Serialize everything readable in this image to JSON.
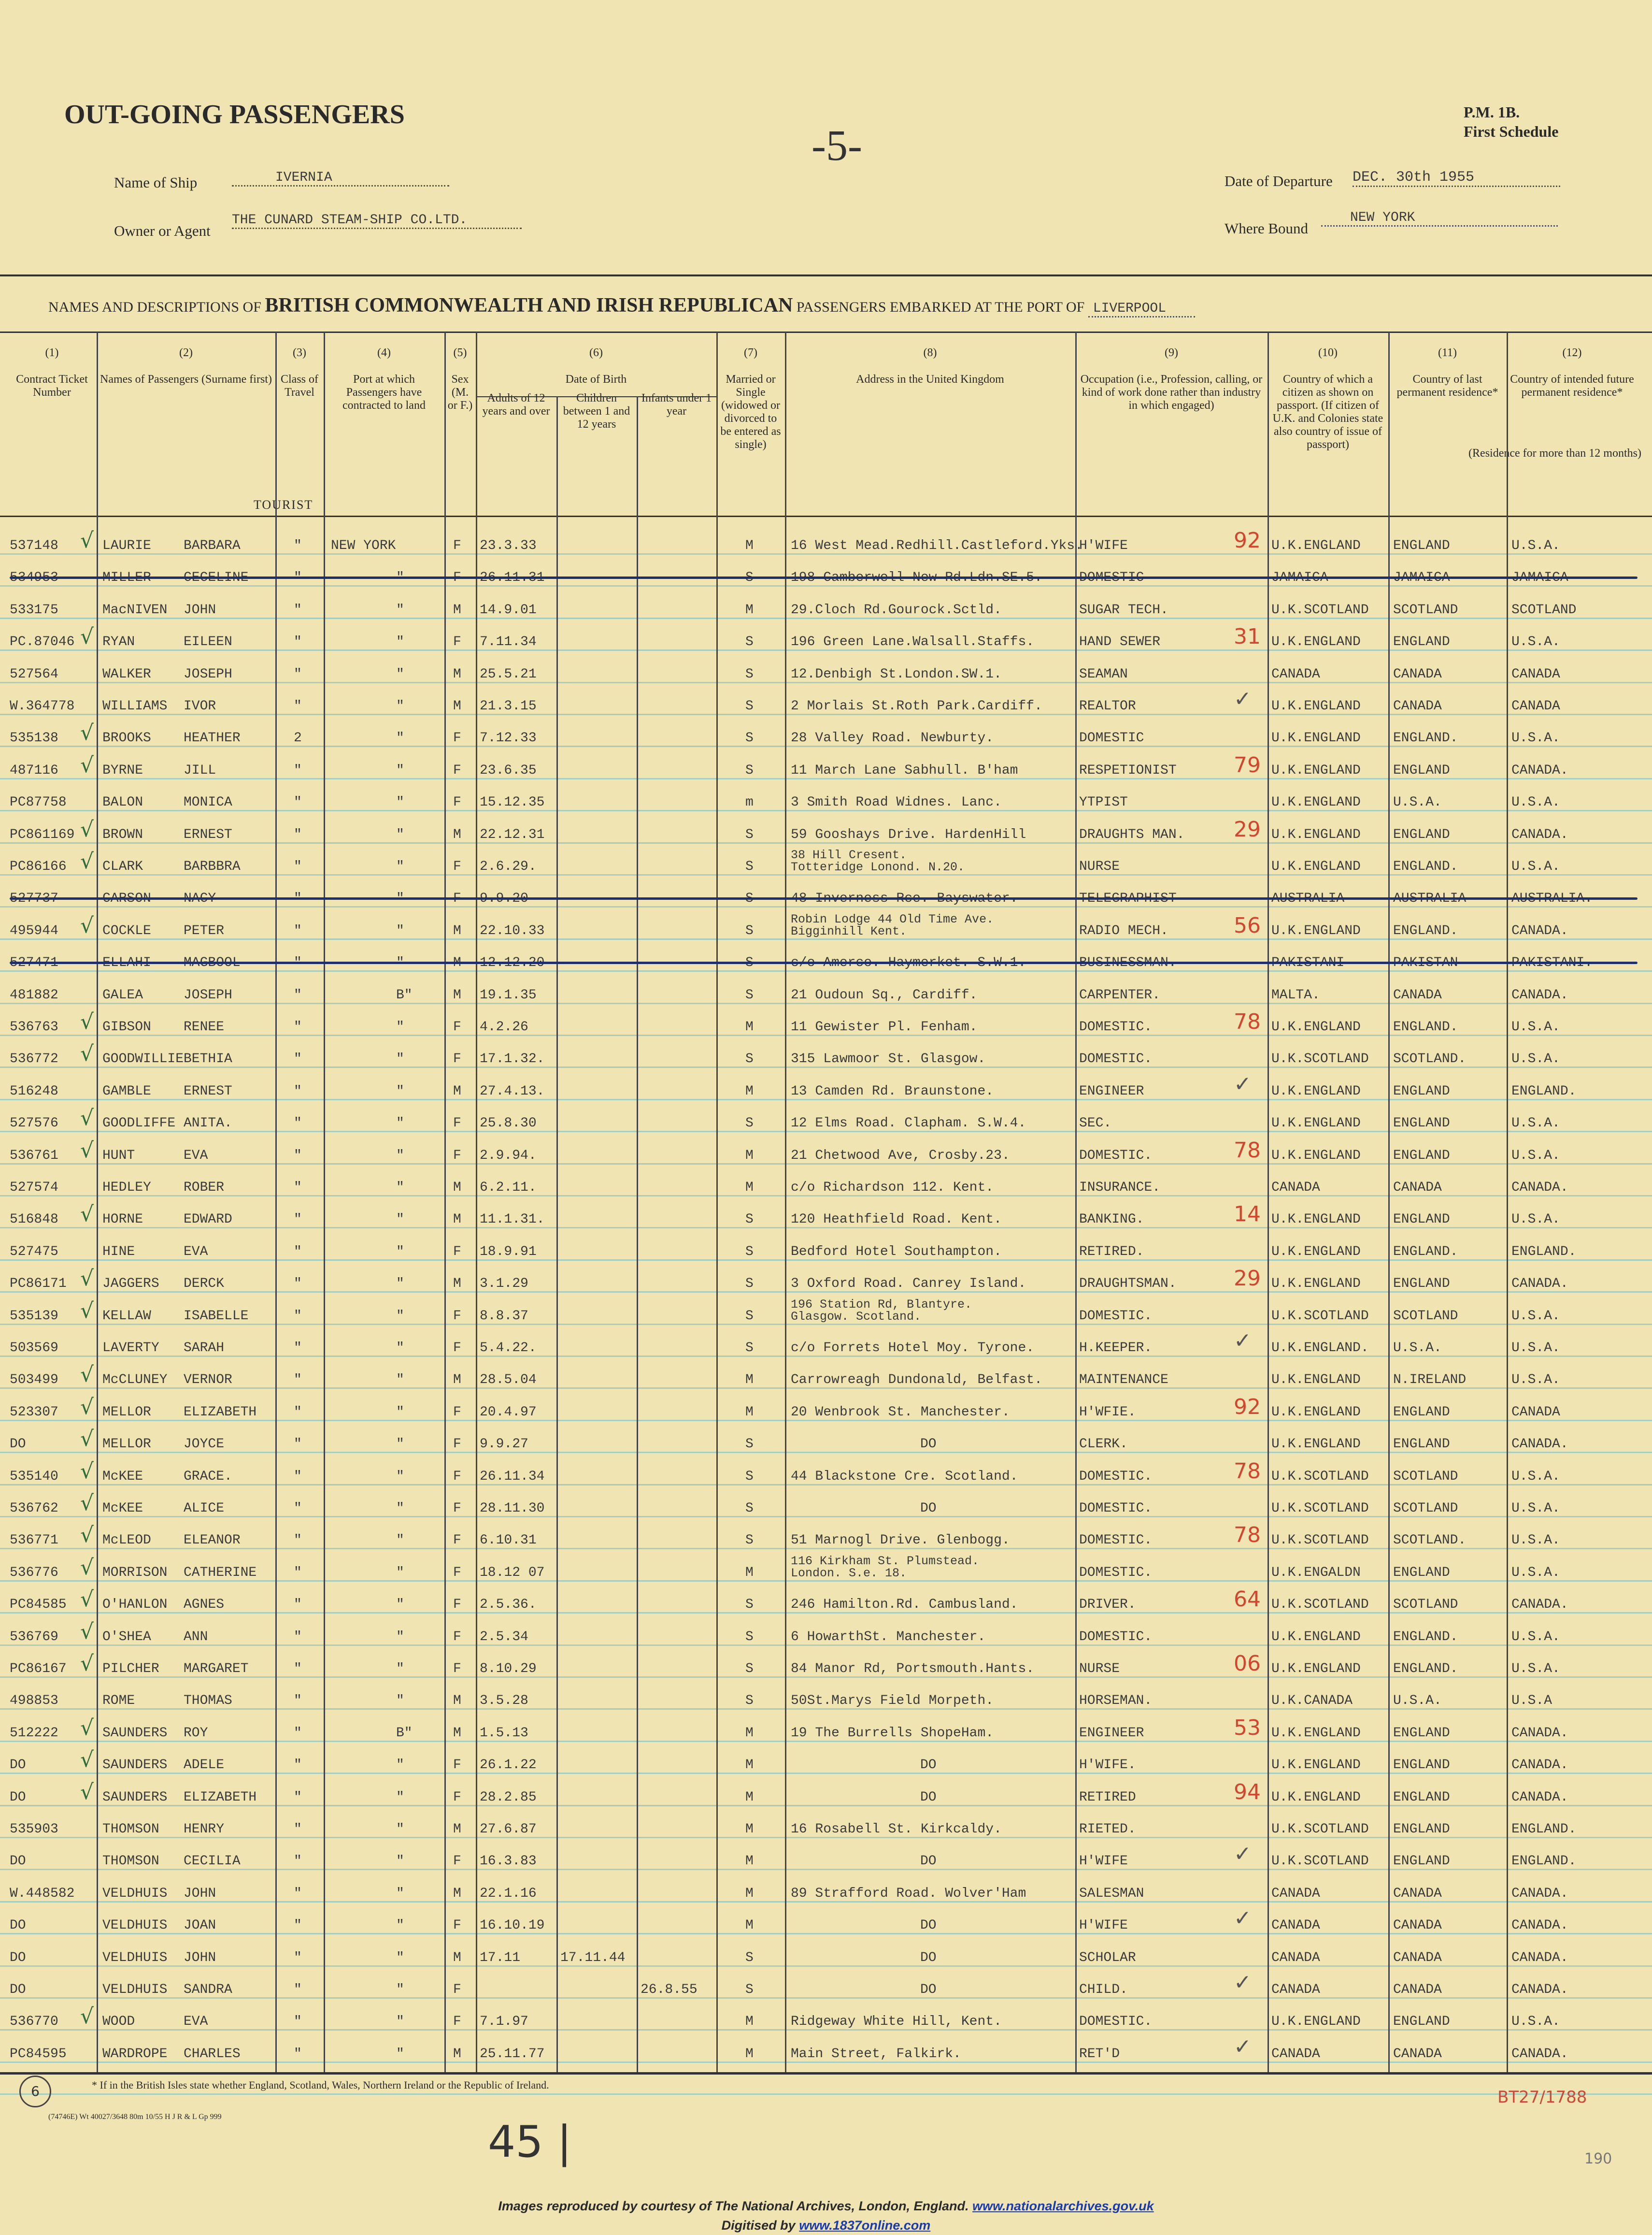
{
  "header": {
    "title": "OUT-GOING PASSENGERS",
    "page_mark": "-5-",
    "form_code": "P.M. 1B.",
    "schedule": "First Schedule",
    "ship_label": "Name of Ship",
    "ship_value": "IVERNIA",
    "owner_label": "Owner or Agent",
    "owner_value": "THE CUNARD STEAM-SHIP CO.LTD.",
    "departure_label": "Date of Departure",
    "departure_value": "DEC. 30th 1955",
    "bound_label": "Where Bound",
    "bound_value": "NEW YORK",
    "heading_pre": "NAMES AND DESCRIPTIONS OF",
    "heading_main": "BRITISH COMMONWEALTH AND IRISH REPUBLICAN",
    "heading_post": "PASSENGERS EMBARKED AT THE PORT OF",
    "port_value": "LIVERPOOL",
    "tourist_label": "TOURIST"
  },
  "columns": [
    {
      "num": "(1)",
      "label": "Contract Ticket Number"
    },
    {
      "num": "(2)",
      "label": "Names of Passengers (Surname first)"
    },
    {
      "num": "(3)",
      "label": "Class of Travel"
    },
    {
      "num": "(4)",
      "label": "Port at which Passengers have contracted to land"
    },
    {
      "num": "(5)",
      "label": "Sex (M. or F.)"
    },
    {
      "num": "(6)",
      "label": "Date of Birth"
    },
    {
      "num": "(7)",
      "label": "Married or Single (widowed or divorced to be entered as single)"
    },
    {
      "num": "(8)",
      "label": "Address in the United Kingdom"
    },
    {
      "num": "(9)",
      "label": "Occupation (i.e., Profession, calling, or kind of work done rather than industry in which engaged)"
    },
    {
      "num": "(10)",
      "label": "Country of which a citizen as shown on passport. (If citizen of U.K. and Colonies state also country of issue of passport)"
    },
    {
      "num": "(11)",
      "label": "Country of last permanent residence*"
    },
    {
      "num": "(12)",
      "label": "Country of intended future permanent residence*"
    }
  ],
  "dob_subcolumns": [
    "Adults of 12 years and over",
    "Children between 1 and 12 years",
    "Infants under 1 year"
  ],
  "residence_note": "(Residence for more than 12 months)",
  "rows": [
    {
      "t": "537148",
      "s": "LAURIE",
      "g": "BARBARA",
      "c": "\"",
      "p": "NEW YORK",
      "x": "F",
      "a": "23.3.33",
      "m": "M",
      "addr": "16 West Mead.Redhill.Castleford.Yks.",
      "occ": "H'WIFE",
      "mark": "92",
      "cit": "U.K.ENGLAND",
      "res": "ENGLAND",
      "fut": "U.S.A.",
      "tick": true
    },
    {
      "t": "534953",
      "s": "MILLER",
      "g": "CECELINE",
      "c": "\"",
      "p": "\"",
      "x": "F",
      "a": "26.11.31",
      "m": "S",
      "addr": "198 Camberwell New Rd.Ldn.SE.5.",
      "occ": "DOMESTIC",
      "cit": "JAMAICA",
      "res": "JAMAICA",
      "fut": "JAMAICA",
      "struck": true
    },
    {
      "t": "533175",
      "s": "MacNIVEN",
      "g": "JOHN",
      "c": "\"",
      "p": "\"",
      "x": "M",
      "a": "14.9.01",
      "m": "M",
      "addr": "29.Cloch Rd.Gourock.Sctld.",
      "occ": "SUGAR TECH.",
      "cit": "U.K.SCOTLAND",
      "res": "SCOTLAND",
      "fut": "SCOTLAND"
    },
    {
      "t": "PC.87046",
      "s": "RYAN",
      "g": "EILEEN",
      "c": "\"",
      "p": "\"",
      "x": "F",
      "a": "7.11.34",
      "m": "S",
      "addr": "196 Green Lane.Walsall.Staffs.",
      "occ": "HAND SEWER",
      "mark": "31",
      "cit": "U.K.ENGLAND",
      "res": "ENGLAND",
      "fut": "U.S.A.",
      "tick": true
    },
    {
      "t": "527564",
      "s": "WALKER",
      "g": "JOSEPH",
      "c": "\"",
      "p": "\"",
      "x": "M",
      "a": "25.5.21",
      "m": "S",
      "addr": "12.Denbigh St.London.SW.1.",
      "occ": "SEAMAN",
      "cit": "CANADA",
      "res": "CANADA",
      "fut": "CANADA"
    },
    {
      "t": "W.364778",
      "s": "WILLIAMS",
      "g": "IVOR",
      "c": "\"",
      "p": "\"",
      "x": "M",
      "a": "21.3.15",
      "m": "S",
      "addr": "2 Morlais St.Roth Park.Cardiff.",
      "occ": "REALTOR",
      "check": true,
      "cit": "U.K.ENGLAND",
      "res": "CANADA",
      "fut": "CANADA"
    },
    {
      "t": "535138",
      "s": "BROOKS",
      "g": "HEATHER",
      "c": "2",
      "p": "\"",
      "x": "F",
      "a": "7.12.33",
      "m": "S",
      "addr": "28 Valley Road. Newburty.",
      "occ": "DOMESTIC",
      "cit": "U.K.ENGLAND",
      "res": "ENGLAND.",
      "fut": "U.S.A.",
      "tick": true
    },
    {
      "t": "487116",
      "s": "BYRNE",
      "g": "JILL",
      "c": "\"",
      "p": "\"",
      "x": "F",
      "a": "23.6.35",
      "m": "S",
      "addr": "11 March Lane Sabhull. B'ham",
      "occ": "RESPETIONIST",
      "mark": "79",
      "cit": "U.K.ENGLAND",
      "res": "ENGLAND",
      "fut": "CANADA.",
      "tick": true
    },
    {
      "t": "PC87758",
      "s": "BALON",
      "g": "MONICA",
      "c": "\"",
      "p": "\"",
      "x": "F",
      "a": "15.12.35",
      "m": "m",
      "addr": "3 Smith Road Widnes. Lanc.",
      "occ": "YTPIST",
      "cit": "U.K.ENGLAND",
      "res": "U.S.A.",
      "fut": "U.S.A."
    },
    {
      "t": "PC861169",
      "s": "BROWN",
      "g": "ERNEST",
      "c": "\"",
      "p": "\"",
      "x": "M",
      "a": "22.12.31",
      "m": "S",
      "addr": "59 Gooshays Drive. HardenHill",
      "occ": "DRAUGHTS MAN.",
      "mark": "29",
      "cit": "U.K.ENGLAND",
      "res": "ENGLAND",
      "fut": "CANADA.",
      "tick": true
    },
    {
      "t": "PC86166",
      "s": "CLARK",
      "g": "BARBBRA",
      "c": "\"",
      "p": "\"",
      "x": "F",
      "a": "2.6.29.",
      "m": "S",
      "addr": "38 Hill Cresent.",
      "addr2": "Totteridge Lonond. N.20.",
      "occ": "NURSE",
      "cit": "U.K.ENGLAND",
      "res": "ENGLAND.",
      "fut": "U.S.A.",
      "tick": true
    },
    {
      "t": "527737",
      "s": "CARSON",
      "g": "NACY",
      "c": "\"",
      "p": "\"",
      "x": "F",
      "a": "9.9.20",
      "m": "S",
      "addr": "48 Inverness Rce. Bayswater.",
      "occ": "TELEGRAPHIST",
      "cit": "AUSTRALIA",
      "res": "AUSTRALIA",
      "fut": "AUSTRALIA.",
      "struck": true
    },
    {
      "t": "495944",
      "s": "COCKLE",
      "g": "PETER",
      "c": "\"",
      "p": "\"",
      "x": "M",
      "a": "22.10.33",
      "m": "S",
      "addr": "Robin Lodge 44 Old Time Ave.",
      "addr2": "Bigginhill Kent.",
      "occ": "RADIO MECH.",
      "mark": "56",
      "cit": "U.K.ENGLAND",
      "res": "ENGLAND.",
      "fut": "CANADA.",
      "tick": true
    },
    {
      "t": "527471",
      "s": "ELLAHI",
      "g": "MAGBOOL",
      "c": "\"",
      "p": "\"",
      "x": "M",
      "a": "12.12.20",
      "m": "S",
      "addr": "c/o Amerco. Haymerket. S.W.1.",
      "occ": "BUSINESSMAN.",
      "cit": "PAKISTANI",
      "res": "PAKISTAN",
      "fut": "PAKISTANI.",
      "struck": true
    },
    {
      "t": "481882",
      "s": "GALEA",
      "g": "JOSEPH",
      "c": "\"",
      "p": "B\"",
      "x": "M",
      "a": "19.1.35",
      "m": "S",
      "addr": "21 Oudoun Sq., Cardiff.",
      "occ": "CARPENTER.",
      "cit": "MALTA.",
      "res": "CANADA",
      "fut": "CANADA."
    },
    {
      "t": "536763",
      "s": "GIBSON",
      "g": "RENEE",
      "c": "\"",
      "p": "\"",
      "x": "F",
      "a": "4.2.26",
      "m": "M",
      "addr": "11 Gewister Pl. Fenham.",
      "occ": "DOMESTIC.",
      "mark": "78",
      "cit": "U.K.ENGLAND",
      "res": "ENGLAND.",
      "fut": "U.S.A.",
      "tick": true
    },
    {
      "t": "536772",
      "s": "GOODWILLIE",
      "g": "BETHIA",
      "c": "\"",
      "p": "\"",
      "x": "F",
      "a": "17.1.32.",
      "m": "S",
      "addr": "315 Lawmoor St. Glasgow.",
      "occ": "DOMESTIC.",
      "cit": "U.K.SCOTLAND",
      "res": "SCOTLAND.",
      "fut": "U.S.A.",
      "tick": true
    },
    {
      "t": "516248",
      "s": "GAMBLE",
      "g": "ERNEST",
      "c": "\"",
      "p": "\"",
      "x": "M",
      "a": "27.4.13.",
      "m": "M",
      "addr": "13 Camden Rd. Braunstone.",
      "occ": "ENGINEER",
      "check": true,
      "cit": "U.K.ENGLAND",
      "res": "ENGLAND",
      "fut": "ENGLAND."
    },
    {
      "t": "527576",
      "s": "GOODLIFFE",
      "g": "ANITA.",
      "c": "\"",
      "p": "\"",
      "x": "F",
      "a": "25.8.30",
      "m": "S",
      "addr": "12 Elms Road. Clapham. S.W.4.",
      "occ": "SEC.",
      "cit": "U.K.ENGLAND",
      "res": "ENGLAND",
      "fut": "U.S.A.",
      "tick": true
    },
    {
      "t": "536761",
      "s": "HUNT",
      "g": "EVA",
      "c": "\"",
      "p": "\"",
      "x": "F",
      "a": "2.9.94.",
      "m": "M",
      "addr": "21 Chetwood Ave, Crosby.23.",
      "occ": "DOMESTIC.",
      "mark": "78",
      "cit": "U.K.ENGLAND",
      "res": "ENGLAND",
      "fut": "U.S.A.",
      "tick": true
    },
    {
      "t": "527574",
      "s": "HEDLEY",
      "g": "ROBER",
      "c": "\"",
      "p": "\"",
      "x": "M",
      "a": "6.2.11.",
      "m": "M",
      "addr": "c/o Richardson 112. Kent.",
      "occ": "INSURANCE.",
      "cit": "CANADA",
      "res": "CANADA",
      "fut": "CANADA."
    },
    {
      "t": "516848",
      "s": "HORNE",
      "g": "EDWARD",
      "c": "\"",
      "p": "\"",
      "x": "M",
      "a": "11.1.31.",
      "m": "S",
      "addr": "120 Heathfield Road. Kent.",
      "occ": "BANKING.",
      "mark": "14",
      "cit": "U.K.ENGLAND",
      "res": "ENGLAND",
      "fut": "U.S.A.",
      "tick": true
    },
    {
      "t": "527475",
      "s": "HINE",
      "g": "EVA",
      "c": "\"",
      "p": "\"",
      "x": "F",
      "a": "18.9.91",
      "m": "S",
      "addr": "Bedford Hotel Southampton.",
      "occ": "RETIRED.",
      "cit": "U.K.ENGLAND",
      "res": "ENGLAND.",
      "fut": "ENGLAND."
    },
    {
      "t": "PC86171",
      "s": "JAGGERS",
      "g": "DERCK",
      "c": "\"",
      "p": "\"",
      "x": "M",
      "a": "3.1.29",
      "m": "S",
      "addr": "3 Oxford Road. Canrey Island.",
      "occ": "DRAUGHTSMAN.",
      "mark": "29",
      "cit": "U.K.ENGLAND",
      "res": "ENGLAND",
      "fut": "CANADA.",
      "tick": true
    },
    {
      "t": "535139",
      "s": "KELLAW",
      "g": "ISABELLE",
      "c": "\"",
      "p": "\"",
      "x": "F",
      "a": "8.8.37",
      "m": "S",
      "addr": "196 Station Rd, Blantyre.",
      "addr2": "Glasgow. Scotland.",
      "occ": "DOMESTIC.",
      "cit": "U.K.SCOTLAND",
      "res": "SCOTLAND",
      "fut": "U.S.A.",
      "tick": true
    },
    {
      "t": "503569",
      "s": "LAVERTY",
      "g": "SARAH",
      "c": "\"",
      "p": "\"",
      "x": "F",
      "a": "5.4.22.",
      "m": "S",
      "addr": "c/o Forrets Hotel Moy. Tyrone.",
      "occ": "H.KEEPER.",
      "check": true,
      "cit": "U.K.ENGLAND.",
      "res": "U.S.A.",
      "fut": "U.S.A."
    },
    {
      "t": "503499",
      "s": "McCLUNEY",
      "g": "VERNOR",
      "c": "\"",
      "p": "\"",
      "x": "M",
      "a": "28.5.04",
      "m": "M",
      "addr": "Carrowreagh Dundonald, Belfast.",
      "occ": "MAINTENANCE",
      "cit": "U.K.ENGLAND",
      "res": "N.IRELAND",
      "fut": "U.S.A.",
      "tick": true
    },
    {
      "t": "523307",
      "s": "MELLOR",
      "g": "ELIZABETH",
      "c": "\"",
      "p": "\"",
      "x": "F",
      "a": "20.4.97",
      "m": "M",
      "addr": "20 Wenbrook St. Manchester.",
      "occ": "H'WFIE.",
      "mark": "92",
      "cit": "U.K.ENGLAND",
      "res": "ENGLAND",
      "fut": "CANADA",
      "tick": true
    },
    {
      "t": "DO",
      "s": "MELLOR",
      "g": "JOYCE",
      "c": "\"",
      "p": "\"",
      "x": "F",
      "a": "9.9.27",
      "m": "S",
      "addr": "DO",
      "occ": "CLERK.",
      "cit": "U.K.ENGLAND",
      "res": "ENGLAND",
      "fut": "CANADA.",
      "tick": true
    },
    {
      "t": "535140",
      "s": "McKEE",
      "g": "GRACE.",
      "c": "\"",
      "p": "\"",
      "x": "F",
      "a": "26.11.34",
      "m": "S",
      "addr": "44 Blackstone Cre. Scotland.",
      "occ": "DOMESTIC.",
      "mark": "78",
      "cit": "U.K.SCOTLAND",
      "res": "SCOTLAND",
      "fut": "U.S.A.",
      "tick": true
    },
    {
      "t": "536762",
      "s": "McKEE",
      "g": "ALICE",
      "c": "\"",
      "p": "\"",
      "x": "F",
      "a": "28.11.30",
      "m": "S",
      "addr": "DO",
      "occ": "DOMESTIC.",
      "cit": "U.K.SCOTLAND",
      "res": "SCOTLAND",
      "fut": "U.S.A.",
      "tick": true
    },
    {
      "t": "536771",
      "s": "McLEOD",
      "g": "ELEANOR",
      "c": "\"",
      "p": "\"",
      "x": "F",
      "a": "6.10.31",
      "m": "S",
      "addr": "51 Marnogl Drive. Glenbogg.",
      "occ": "DOMESTIC.",
      "mark": "78",
      "cit": "U.K.SCOTLAND",
      "res": "SCOTLAND.",
      "fut": "U.S.A.",
      "tick": true
    },
    {
      "t": "536776",
      "s": "MORRISON",
      "g": "CATHERINE",
      "c": "\"",
      "p": "\"",
      "x": "F",
      "a": "18.12 07",
      "m": "M",
      "addr": "116 Kirkham St. Plumstead.",
      "addr2": "London. S.e. 18.",
      "occ": "DOMESTIC.",
      "cit": "U.K.ENGALDN",
      "res": "ENGLAND",
      "fut": "U.S.A.",
      "tick": true
    },
    {
      "t": "PC84585",
      "s": "O'HANLON",
      "g": "AGNES",
      "c": "\"",
      "p": "\"",
      "x": "F",
      "a": "2.5.36.",
      "m": "S",
      "addr": "246 Hamilton.Rd. Cambusland.",
      "occ": "DRIVER.",
      "mark": "64",
      "cit": "U.K.SCOTLAND",
      "res": "SCOTLAND",
      "fut": "CANADA.",
      "tick": true
    },
    {
      "t": "536769",
      "s": "O'SHEA",
      "g": "ANN",
      "c": "\"",
      "p": "\"",
      "x": "F",
      "a": "2.5.34",
      "m": "S",
      "addr": "6 HowarthSt. Manchester.",
      "occ": "DOMESTIC.",
      "cit": "U.K.ENGLAND",
      "res": "ENGLAND.",
      "fut": "U.S.A.",
      "tick": true
    },
    {
      "t": "PC86167",
      "s": "PILCHER",
      "g": "MARGARET",
      "c": "\"",
      "p": "\"",
      "x": "F",
      "a": "8.10.29",
      "m": "S",
      "addr": "84 Manor Rd, Portsmouth.Hants.",
      "occ": "NURSE",
      "mark": "06",
      "cit": "U.K.ENGLAND",
      "res": "ENGLAND.",
      "fut": "U.S.A.",
      "tick": true
    },
    {
      "t": "498853",
      "s": "ROME",
      "g": "THOMAS",
      "c": "\"",
      "p": "\"",
      "x": "M",
      "a": "3.5.28",
      "m": "S",
      "addr": "50St.Marys Field Morpeth.",
      "occ": "HORSEMAN.",
      "cit": "U.K.CANADA",
      "res": "U.S.A.",
      "fut": "U.S.A"
    },
    {
      "t": "512222",
      "s": "SAUNDERS",
      "g": "ROY",
      "c": "\"",
      "p": "B\"",
      "x": "M",
      "a": "1.5.13",
      "m": "M",
      "addr": "19 The Burrells ShopeHam.",
      "occ": "ENGINEER",
      "mark": "53",
      "cit": "U.K.ENGLAND",
      "res": "ENGLAND",
      "fut": "CANADA.",
      "tick": true
    },
    {
      "t": "DO",
      "s": "SAUNDERS",
      "g": "ADELE",
      "c": "\"",
      "p": "\"",
      "x": "F",
      "a": "26.1.22",
      "m": "M",
      "addr": "DO",
      "occ": "H'WIFE.",
      "cit": "U.K.ENGLAND",
      "res": "ENGLAND",
      "fut": "CANADA.",
      "tick": true
    },
    {
      "t": "DO",
      "s": "SAUNDERS",
      "g": "ELIZABETH",
      "c": "\"",
      "p": "\"",
      "x": "F",
      "a": "28.2.85",
      "m": "M",
      "addr": "DO",
      "occ": "RETIRED",
      "mark": "94",
      "cit": "U.K.ENGLAND",
      "res": "ENGLAND",
      "fut": "CANADA.",
      "tick": true
    },
    {
      "t": "535903",
      "s": "THOMSON",
      "g": "HENRY",
      "c": "\"",
      "p": "\"",
      "x": "M",
      "a": "27.6.87",
      "m": "M",
      "addr": "16 Rosabell St. Kirkcaldy.",
      "occ": "RIETED.",
      "cit": "U.K.SCOTLAND",
      "res": "ENGLAND",
      "fut": "ENGLAND."
    },
    {
      "t": "DO",
      "s": "THOMSON",
      "g": "CECILIA",
      "c": "\"",
      "p": "\"",
      "x": "F",
      "a": "16.3.83",
      "m": "M",
      "addr": "DO",
      "occ": "H'WIFE",
      "check": true,
      "cit": "U.K.SCOTLAND",
      "res": "ENGLAND",
      "fut": "ENGLAND."
    },
    {
      "t": "W.448582",
      "s": "VELDHUIS",
      "g": "JOHN",
      "c": "\"",
      "p": "\"",
      "x": "M",
      "a": "22.1.16",
      "m": "M",
      "addr": "89 Strafford Road. Wolver'Ham",
      "occ": "SALESMAN",
      "cit": "CANADA",
      "res": "CANADA",
      "fut": "CANADA."
    },
    {
      "t": "DO",
      "s": "VELDHUIS",
      "g": "JOAN",
      "c": "\"",
      "p": "\"",
      "x": "F",
      "a": "16.10.19",
      "m": "M",
      "addr": "DO",
      "occ": "H'WIFE",
      "check": true,
      "cit": "CANADA",
      "res": "CANADA",
      "fut": "CANADA."
    },
    {
      "t": "DO",
      "s": "VELDHUIS",
      "g": "JOHN",
      "c": "\"",
      "p": "\"",
      "x": "M",
      "a": "17.11",
      "ch": "17.11.44",
      "m": "S",
      "addr": "DO",
      "occ": "SCHOLAR",
      "cit": "CANADA",
      "res": "CANADA",
      "fut": "CANADA."
    },
    {
      "t": "DO",
      "s": "VELDHUIS",
      "g": "SANDRA",
      "c": "\"",
      "p": "\"",
      "x": "F",
      "inf": "26.8.55",
      "m": "S",
      "addr": "DO",
      "occ": "CHILD.",
      "check": true,
      "cit": "CANADA",
      "res": "CANADA",
      "fut": "CANADA."
    },
    {
      "t": "536770",
      "s": "WOOD",
      "g": "EVA",
      "c": "\"",
      "p": "\"",
      "x": "F",
      "a": "7.1.97",
      "m": "M",
      "addr": "Ridgeway White Hill, Kent.",
      "occ": "DOMESTIC.",
      "cit": "U.K.ENGLAND",
      "res": "ENGLAND",
      "fut": "U.S.A.",
      "tick": true
    },
    {
      "t": "PC84595",
      "s": "WARDROPE",
      "g": "CHARLES",
      "c": "\"",
      "p": "\"",
      "x": "M",
      "a": "25.11.77",
      "m": "M",
      "addr": "Main Street, Falkirk.",
      "occ": "RET'D",
      "check": true,
      "cit": "CANADA",
      "res": "CANADA",
      "fut": "CANADA."
    }
  ],
  "footer": {
    "footnote": "* If in the British Isles state whether England, Scotland, Wales, Northern Ireland or the Republic of Ireland.",
    "print_code": "(74746E) Wt 40027/3648 80m 10/55 H J R & L Gp 999",
    "handwritten_count": "45 |",
    "reference": "BT27/1788",
    "folio": "190",
    "credit_text": "Images reproduced by courtesy of The National Archives, London, England.",
    "credit_link": "www.nationalarchives.gov.uk",
    "digitised_label": "Digitised by",
    "digitised_link": "www.1837online.com"
  },
  "colors": {
    "paper": "#f1e4b3",
    "rule": "#a8cdbf",
    "red_ink": "#d2462f",
    "green_ink": "#2f6a3a",
    "strike_ink": "#1f2f6b",
    "link": "#1a3bb0"
  }
}
